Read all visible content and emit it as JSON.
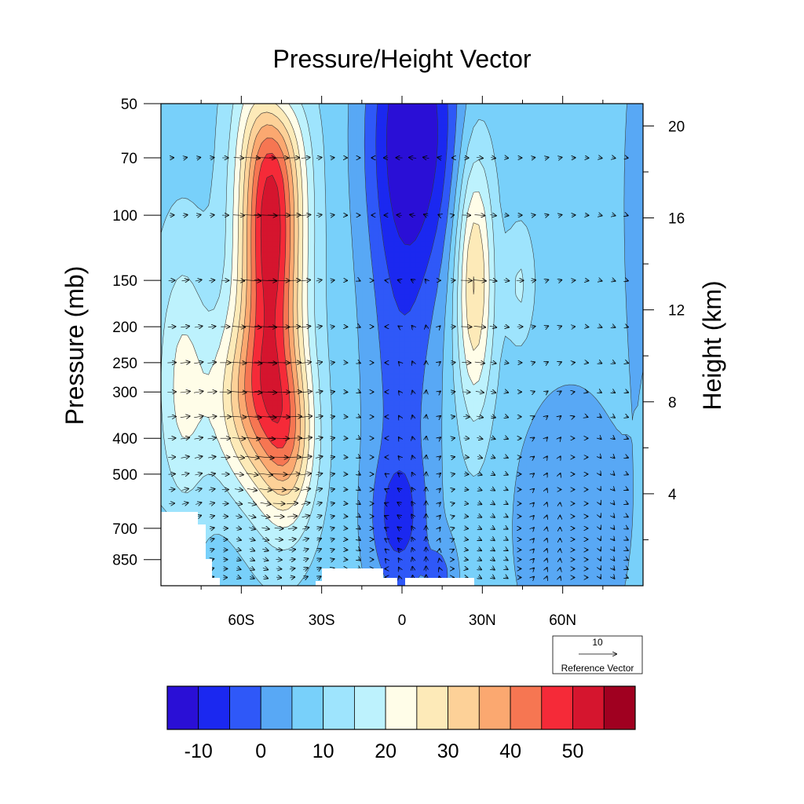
{
  "chart_data": {
    "type": "contour",
    "title": "Pressure/Height Vector",
    "ylabel": "Pressure (mb)",
    "ylabel_right": "Height (km)",
    "x_ticks": [
      {
        "value": -60,
        "label": "60S"
      },
      {
        "value": -30,
        "label": "30S"
      },
      {
        "value": 0,
        "label": "0"
      },
      {
        "value": 30,
        "label": "30N"
      },
      {
        "value": 60,
        "label": "60N"
      }
    ],
    "xlim": [
      -90,
      90
    ],
    "y_ticks": [
      {
        "value": 50,
        "label": "50"
      },
      {
        "value": 70,
        "label": "70"
      },
      {
        "value": 100,
        "label": "100"
      },
      {
        "value": 150,
        "label": "150"
      },
      {
        "value": 200,
        "label": "200"
      },
      {
        "value": 250,
        "label": "250"
      },
      {
        "value": 300,
        "label": "300"
      },
      {
        "value": 400,
        "label": "400"
      },
      {
        "value": 500,
        "label": "500"
      },
      {
        "value": 700,
        "label": "700"
      },
      {
        "value": 850,
        "label": "850"
      }
    ],
    "ylim": [
      1000,
      50
    ],
    "y_right_ticks": [
      {
        "value": 4,
        "label": "4"
      },
      {
        "value": 8,
        "label": "8"
      },
      {
        "value": 12,
        "label": "12"
      },
      {
        "value": 16,
        "label": "16"
      },
      {
        "value": 20,
        "label": "20"
      }
    ],
    "colorbar": {
      "levels": [
        -15,
        -10,
        -5,
        0,
        5,
        10,
        15,
        20,
        25,
        30,
        35,
        40,
        45,
        50,
        55,
        60
      ],
      "labels": [
        "-10",
        "0",
        "10",
        "20",
        "30",
        "40",
        "50"
      ],
      "colors": [
        "#2a0fd6",
        "#1b28f0",
        "#2f58f8",
        "#58a8f5",
        "#78d0fa",
        "#9ee4fd",
        "#bdf2fd",
        "#fffde8",
        "#fdeab8",
        "#fdd198",
        "#fba870",
        "#f67652",
        "#f52a38",
        "#d5152e",
        "#a00020"
      ]
    },
    "reference_vector": {
      "magnitude": "10",
      "label": "Reference Vector"
    },
    "jets": [
      {
        "name": "southern-hemisphere-jet",
        "lat": -50,
        "pressure": 200,
        "max_value": 50
      },
      {
        "name": "northern-hemisphere-jet",
        "lat": 27,
        "pressure": 180,
        "max_value": 30
      },
      {
        "name": "equatorial-easterlies",
        "lat": 5,
        "pressure": 60,
        "min_value": -10
      }
    ]
  }
}
